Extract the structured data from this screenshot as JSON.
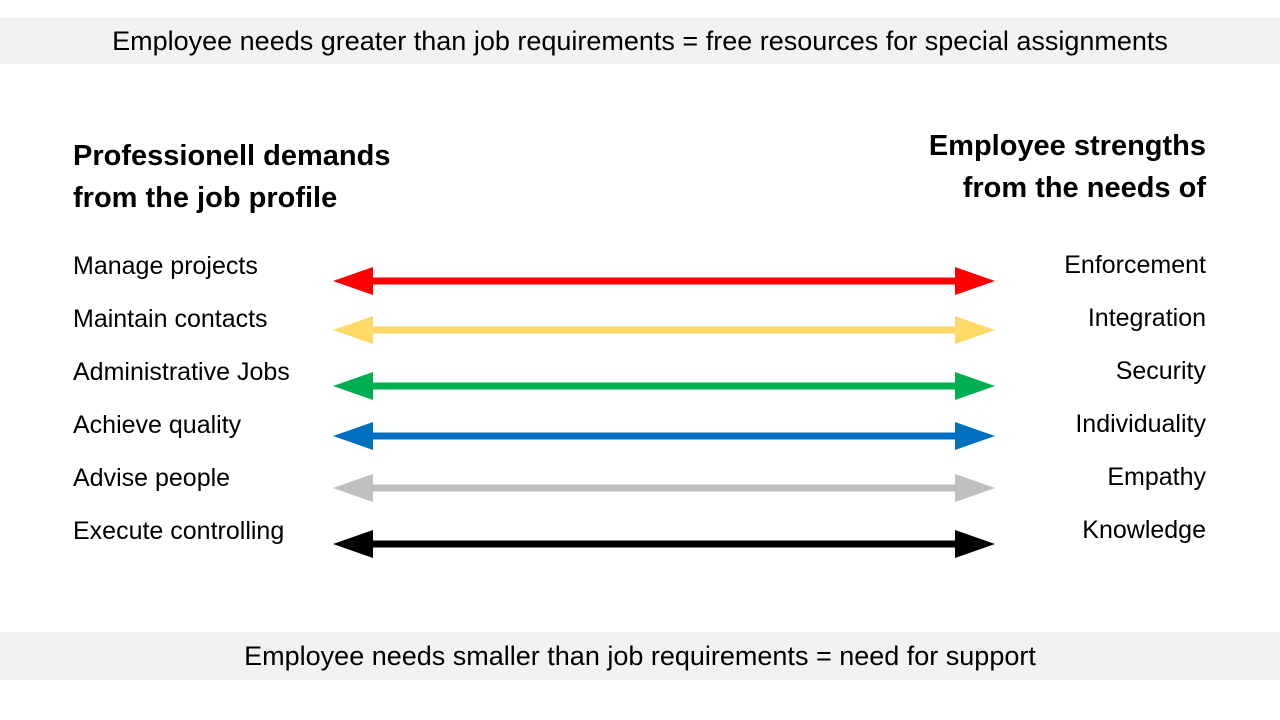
{
  "banner_top": "Employee needs greater than job requirements = free resources for special assignments",
  "banner_bottom": "Employee needs smaller than job requirements = need for support",
  "heading_left": [
    "Professionell demands",
    "from the job profile"
  ],
  "heading_right": [
    "Employee strengths",
    "from the needs of"
  ],
  "rows": [
    {
      "left": "Manage projects",
      "right": "Enforcement",
      "color": "#ff0000"
    },
    {
      "left": "Maintain contacts",
      "right": "Integration",
      "color": "#ffd966"
    },
    {
      "left": "Administrative Jobs",
      "right": "Security",
      "color": "#00b050"
    },
    {
      "left": "Achieve quality",
      "right": "Individuality",
      "color": "#0070c0"
    },
    {
      "left": "Advise people",
      "right": "Empathy",
      "color": "#bfbfbf"
    },
    {
      "left": "Execute controlling",
      "right": "Knowledge",
      "color": "#000000"
    }
  ]
}
